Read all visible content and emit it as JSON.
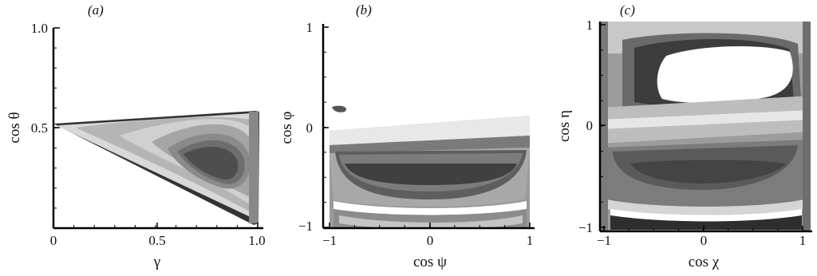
{
  "chart_data": [
    {
      "type": "heatmap",
      "panel_label": "(a)",
      "xlabel": "γ",
      "ylabel": "cos θ",
      "xlim": [
        0,
        1.0
      ],
      "ylim": [
        0,
        1.0
      ],
      "x_ticks": [
        "0",
        "0.5",
        "1.0"
      ],
      "y_ticks": [
        "0.5",
        "1.0"
      ],
      "note": "filled contour region; bounded by cos θ = 0.5 at top and diagonal line to (1,0)"
    },
    {
      "type": "heatmap",
      "panel_label": "(b)",
      "xlabel": "cos ψ",
      "ylabel": "cos φ",
      "xlim": [
        -1,
        1
      ],
      "ylim": [
        -1,
        1
      ],
      "x_ticks": [
        "−1",
        "0",
        "1"
      ],
      "y_ticks": [
        "−1",
        "0",
        "1"
      ]
    },
    {
      "type": "heatmap",
      "panel_label": "(c)",
      "xlabel": "cos χ",
      "ylabel": "cos η",
      "xlim": [
        -1,
        1
      ],
      "ylim": [
        -1,
        1
      ],
      "x_ticks": [
        "−1",
        "0",
        "1"
      ],
      "y_ticks": [
        "−1",
        "0",
        "1"
      ]
    }
  ],
  "colors": {
    "darkest": "#2b2b2b",
    "dark": "#555555",
    "mid": "#7a7a7a",
    "light": "#a8a8a8",
    "lighter": "#cfcfcf",
    "axis": "#000000"
  }
}
